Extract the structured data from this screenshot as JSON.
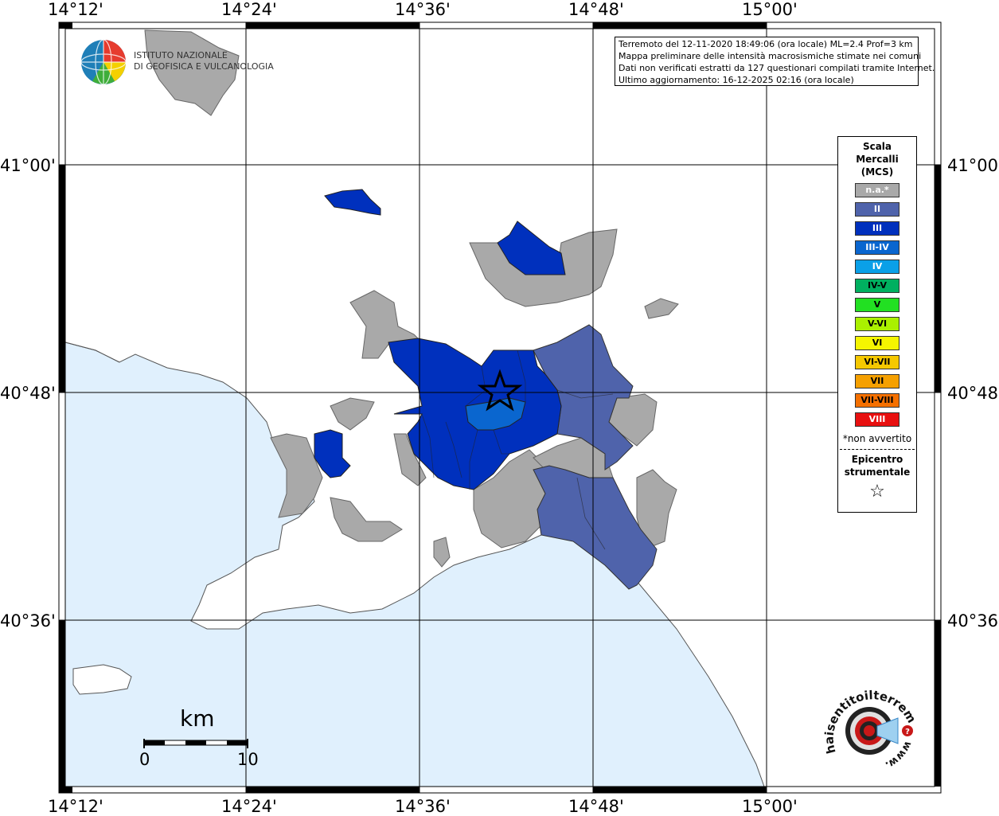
{
  "info": {
    "line1": "Terremoto del 12-11-2020 18:49:06 (ora locale) ML=2.4 Prof=3 km",
    "line2": "Mappa preliminare delle intensità macrosismiche stimate nei comuni",
    "line3": "Dati non verificati estratti da 127 questionari compilati tramite Internet.",
    "line4": "Ultimo aggiornamento: 16-12-2025 02:16 (ora locale)"
  },
  "axes": {
    "top": [
      "14°12'",
      "14°24'",
      "14°36'",
      "14°48'",
      "15°00'"
    ],
    "bottom": [
      "14°12'",
      "14°24'",
      "14°36'",
      "14°48'",
      "15°00'"
    ],
    "left": [
      "41°00'",
      "40°48'",
      "40°36'"
    ],
    "right": [
      "41°00'",
      "40°48'",
      "40°36'"
    ]
  },
  "legend": {
    "title1": "Scala",
    "title2": "Mercalli",
    "title3": "(MCS)",
    "items": [
      {
        "label": "n.a.*",
        "color": "#a9a9a9",
        "text": "#ffffff"
      },
      {
        "label": "II",
        "color": "#4f63ab",
        "text": "#ffffff"
      },
      {
        "label": "III",
        "color": "#0030bd",
        "text": "#ffffff"
      },
      {
        "label": "III-IV",
        "color": "#0a66cf",
        "text": "#ffffff"
      },
      {
        "label": "IV",
        "color": "#0aa0e8",
        "text": "#ffffff"
      },
      {
        "label": "IV-V",
        "color": "#00b060",
        "text": "#000000"
      },
      {
        "label": "V",
        "color": "#22e022",
        "text": "#000000"
      },
      {
        "label": "V-VI",
        "color": "#aaf000",
        "text": "#000000"
      },
      {
        "label": "VI",
        "color": "#f5f500",
        "text": "#000000"
      },
      {
        "label": "VI-VII",
        "color": "#f5c800",
        "text": "#000000"
      },
      {
        "label": "VII",
        "color": "#f5a000",
        "text": "#000000"
      },
      {
        "label": "VII-VIII",
        "color": "#f57000",
        "text": "#000000"
      },
      {
        "label": "VIII",
        "color": "#e81010",
        "text": "#ffffff"
      }
    ],
    "note": "*non avvertito",
    "epi1": "Epicentro",
    "epi2": "strumentale",
    "star": "☆"
  },
  "logo": {
    "line1": "ISTITUTO NAZIONALE",
    "line2": "DI GEOFISICA E VULCANOLOGIA"
  },
  "scalebar": {
    "unit": "km",
    "min": "0",
    "max": "10"
  },
  "hai_logo": {
    "text": "haisentitoilterremoto.it",
    "www": "www."
  },
  "colors": {
    "sea": "#e0f0fd",
    "land": "#ffffff",
    "na": "#a9a9a9",
    "ii": "#4f63ab",
    "iii": "#0030bd",
    "iii_iv": "#0a66cf"
  }
}
